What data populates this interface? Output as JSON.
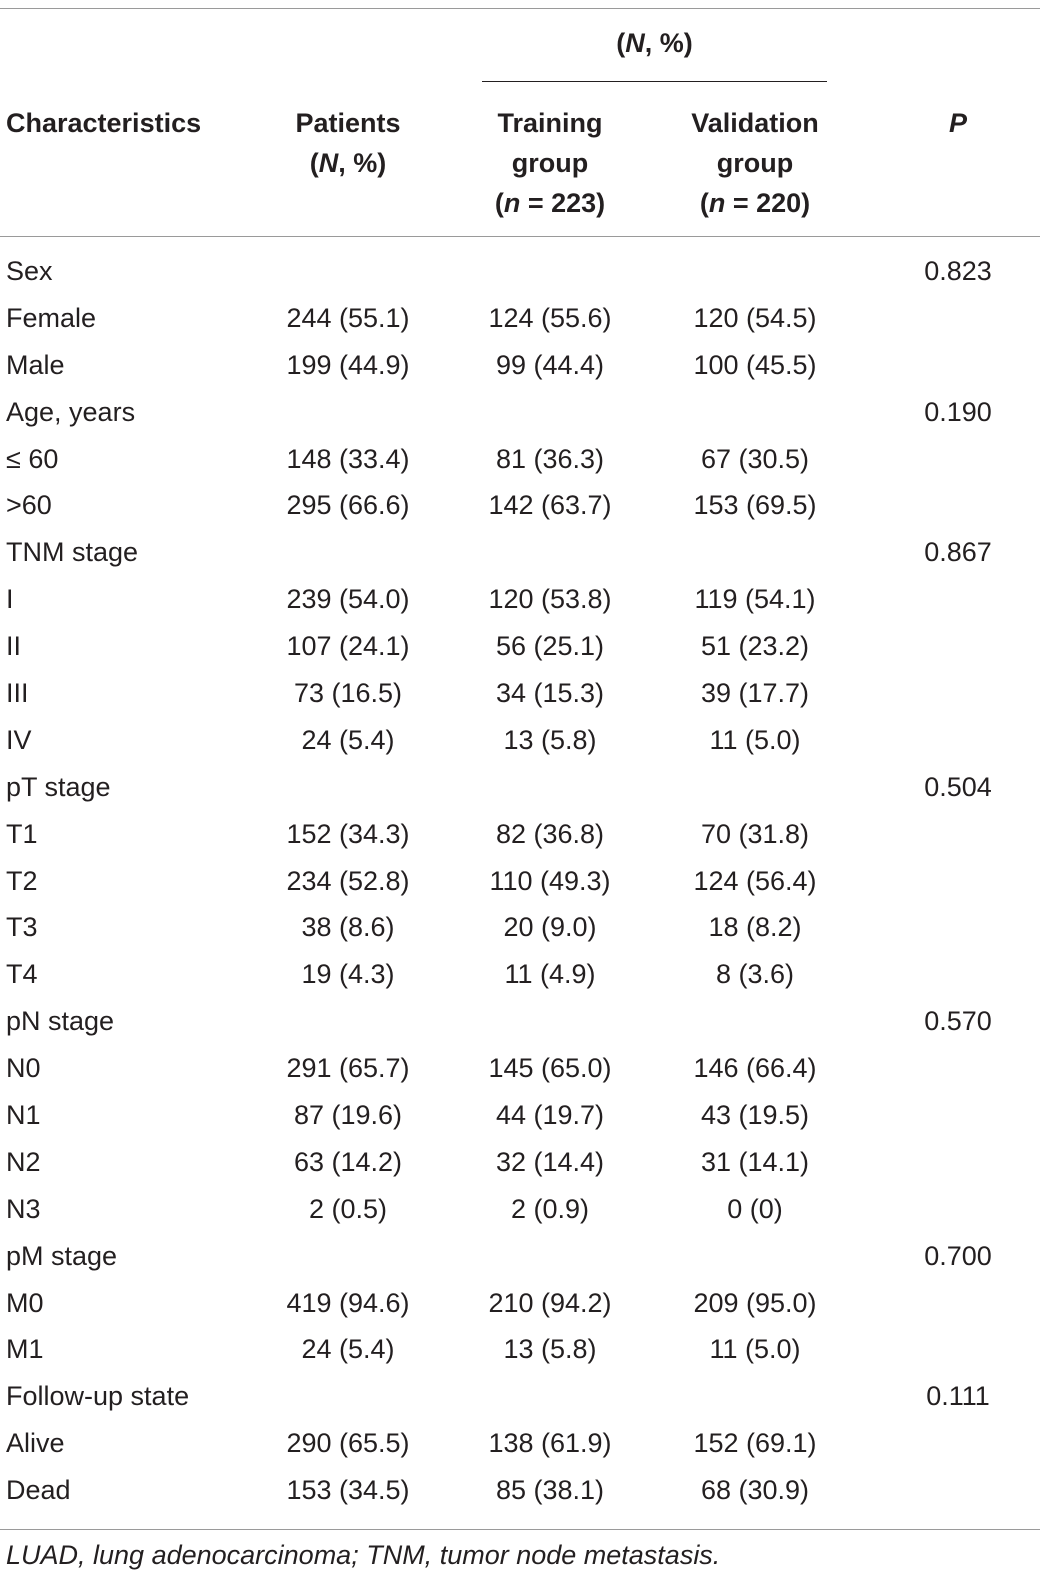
{
  "table": {
    "span_header": "(N, %)",
    "columns": {
      "characteristics": "Characteristics",
      "patients_line1": "Patients",
      "patients_line2": "(N, %)",
      "training_line1": "Training",
      "training_line2": "group",
      "training_line3": "(n = 223)",
      "validation_line1": "Validation",
      "validation_line2": "group",
      "validation_line3": "(n = 220)",
      "p": "P"
    },
    "rows": [
      {
        "label": "Sex",
        "patients": "",
        "training": "",
        "validation": "",
        "p": "0.823"
      },
      {
        "label": "Female",
        "patients": "244 (55.1)",
        "training": "124 (55.6)",
        "validation": "120 (54.5)",
        "p": ""
      },
      {
        "label": "Male",
        "patients": "199 (44.9)",
        "training": "99 (44.4)",
        "validation": "100 (45.5)",
        "p": ""
      },
      {
        "label": "Age, years",
        "patients": "",
        "training": "",
        "validation": "",
        "p": "0.190"
      },
      {
        "label": " ≤ 60",
        "patients": "148 (33.4)",
        "training": "81 (36.3)",
        "validation": "67 (30.5)",
        "p": ""
      },
      {
        "label": ">60",
        "patients": "295 (66.6)",
        "training": "142 (63.7)",
        "validation": "153 (69.5)",
        "p": ""
      },
      {
        "label": "TNM stage",
        "patients": "",
        "training": "",
        "validation": "",
        "p": "0.867"
      },
      {
        "label": "I",
        "patients": "239 (54.0)",
        "training": "120 (53.8)",
        "validation": "119 (54.1)",
        "p": ""
      },
      {
        "label": "II",
        "patients": "107 (24.1)",
        "training": "56 (25.1)",
        "validation": "51 (23.2)",
        "p": ""
      },
      {
        "label": "III",
        "patients": "73 (16.5)",
        "training": "34 (15.3)",
        "validation": "39 (17.7)",
        "p": ""
      },
      {
        "label": "IV",
        "patients": "24 (5.4)",
        "training": "13 (5.8)",
        "validation": "11 (5.0)",
        "p": ""
      },
      {
        "label": "pT stage",
        "patients": "",
        "training": "",
        "validation": "",
        "p": "0.504"
      },
      {
        "label": "T1",
        "patients": "152 (34.3)",
        "training": "82 (36.8)",
        "validation": "70 (31.8)",
        "p": ""
      },
      {
        "label": "T2",
        "patients": "234 (52.8)",
        "training": "110 (49.3)",
        "validation": "124 (56.4)",
        "p": ""
      },
      {
        "label": "T3",
        "patients": "38 (8.6)",
        "training": "20 (9.0)",
        "validation": "18 (8.2)",
        "p": ""
      },
      {
        "label": "T4",
        "patients": "19 (4.3)",
        "training": "11 (4.9)",
        "validation": "8 (3.6)",
        "p": ""
      },
      {
        "label": "pN stage",
        "patients": "",
        "training": "",
        "validation": "",
        "p": "0.570"
      },
      {
        "label": "N0",
        "patients": "291 (65.7)",
        "training": "145 (65.0)",
        "validation": "146 (66.4)",
        "p": ""
      },
      {
        "label": "N1",
        "patients": "87 (19.6)",
        "training": "44 (19.7)",
        "validation": "43 (19.5)",
        "p": ""
      },
      {
        "label": "N2",
        "patients": "63 (14.2)",
        "training": "32 (14.4)",
        "validation": "31 (14.1)",
        "p": ""
      },
      {
        "label": "N3",
        "patients": "2 (0.5)",
        "training": "2 (0.9)",
        "validation": "0 (0)",
        "p": ""
      },
      {
        "label": "pM stage",
        "patients": "",
        "training": "",
        "validation": "",
        "p": "0.700"
      },
      {
        "label": "M0",
        "patients": "419 (94.6)",
        "training": "210 (94.2)",
        "validation": "209 (95.0)",
        "p": ""
      },
      {
        "label": "M1",
        "patients": "24 (5.4)",
        "training": "13 (5.8)",
        "validation": "11 (5.0)",
        "p": ""
      },
      {
        "label": "Follow-up state",
        "patients": "",
        "training": "",
        "validation": "",
        "p": "0.111"
      },
      {
        "label": "Alive",
        "patients": "290 (65.5)",
        "training": "138 (61.9)",
        "validation": "152 (69.1)",
        "p": ""
      },
      {
        "label": "Dead",
        "patients": "153 (34.5)",
        "training": "85 (38.1)",
        "validation": "68 (30.9)",
        "p": ""
      }
    ],
    "footnote": "LUAD, lung adenocarcinoma; TNM, tumor node metastasis."
  }
}
